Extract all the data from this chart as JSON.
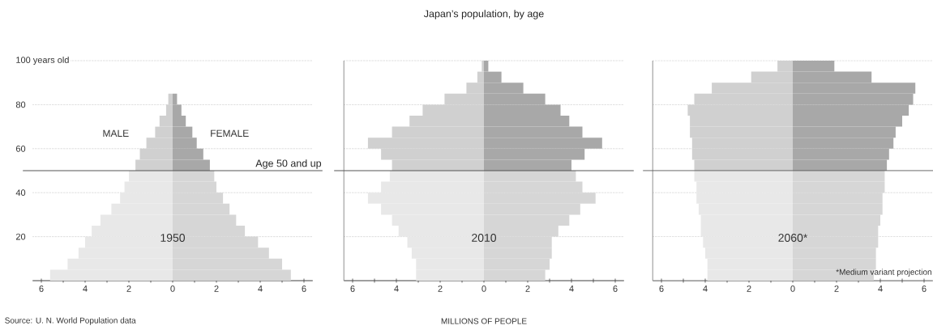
{
  "chart_data": [
    {
      "type": "bar",
      "orientation": "horizontal",
      "stacked": true,
      "subtitle": "1950",
      "annotations": [
        "Source: U. N. World Population data"
      ],
      "x": [
        2.5,
        7.5,
        12.5,
        17.5,
        22.5,
        27.5,
        32.5,
        37.5,
        42.5,
        47.5,
        52.5,
        57.5,
        62.5,
        67.5,
        72.5,
        77.5,
        82.5
      ],
      "series": [
        {
          "name": "MALE",
          "values": [
            -5.6,
            -4.8,
            -4.3,
            -4.0,
            -3.7,
            -3.3,
            -2.8,
            -2.4,
            -2.2,
            -2.0,
            -1.7,
            -1.5,
            -1.2,
            -0.8,
            -0.6,
            -0.3,
            -0.2
          ],
          "colors": [
            "#e8e8e8",
            "#e8e8e8",
            "#e8e8e8",
            "#e8e8e8",
            "#e8e8e8",
            "#e8e8e8",
            "#e8e8e8",
            "#e8e8e8",
            "#e8e8e8",
            "#e8e8e8",
            "#d0d0d0",
            "#d0d0d0",
            "#d0d0d0",
            "#d0d0d0",
            "#d0d0d0",
            "#d0d0d0",
            "#d0d0d0"
          ]
        },
        {
          "name": "FEMALE",
          "values": [
            5.4,
            5.0,
            4.4,
            3.9,
            3.3,
            2.9,
            2.6,
            2.3,
            2.0,
            1.9,
            1.7,
            1.4,
            1.1,
            0.9,
            0.6,
            0.4,
            0.2
          ],
          "colors": [
            "#d6d6d6",
            "#d6d6d6",
            "#d6d6d6",
            "#d6d6d6",
            "#d6d6d6",
            "#d6d6d6",
            "#d6d6d6",
            "#d6d6d6",
            "#d6d6d6",
            "#d6d6d6",
            "#a8a8a8",
            "#a8a8a8",
            "#a8a8a8",
            "#a8a8a8",
            "#a8a8a8",
            "#a8a8a8",
            "#a8a8a8"
          ]
        }
      ],
      "xlim": [
        -6.4,
        6.4
      ],
      "xticks": [
        {
          "value": -6,
          "label": "6"
        },
        {
          "value": -5,
          "label": null
        },
        {
          "value": -4,
          "label": "4"
        },
        {
          "value": -3,
          "label": null
        },
        {
          "value": -2,
          "label": "2"
        },
        {
          "value": -1,
          "label": null
        },
        0,
        {
          "value": 1,
          "label": null
        },
        2,
        {
          "value": 3,
          "label": null
        },
        4,
        {
          "value": 5,
          "label": null
        },
        6
      ],
      "ylim": [
        0,
        100
      ],
      "yticks": [
        20,
        40,
        60,
        80,
        {
          "value": 100,
          "label": "100 years old"
        }
      ],
      "grid": "y",
      "ref_lines": [
        {
          "axis": "y",
          "value": 50,
          "label": "Age 50 and up",
          "color": "#555555"
        }
      ]
    },
    {
      "type": "bar",
      "orientation": "horizontal",
      "stacked": true,
      "title": "Japan’s population, by age",
      "subtitle": "2010",
      "xlabel": "MILLIONS OF PEOPLE",
      "x": [
        2.5,
        7.5,
        12.5,
        17.5,
        22.5,
        27.5,
        32.5,
        37.5,
        42.5,
        47.5,
        52.5,
        57.5,
        62.5,
        67.5,
        72.5,
        77.5,
        82.5,
        87.5,
        92.5,
        97.5
      ],
      "series": [
        {
          "values": [
            -3.1,
            -3.1,
            -3.3,
            -3.5,
            -3.9,
            -4.2,
            -4.7,
            -5.3,
            -4.7,
            -4.3,
            -4.2,
            -4.7,
            -5.3,
            -4.2,
            -3.4,
            -2.8,
            -1.8,
            -0.8,
            -0.3,
            -0.1
          ],
          "colors": [
            "#e8e8e8",
            "#e8e8e8",
            "#e8e8e8",
            "#e8e8e8",
            "#e8e8e8",
            "#e8e8e8",
            "#e8e8e8",
            "#e8e8e8",
            "#e8e8e8",
            "#e8e8e8",
            "#d0d0d0",
            "#d0d0d0",
            "#d0d0d0",
            "#d0d0d0",
            "#d0d0d0",
            "#d0d0d0",
            "#d0d0d0",
            "#d0d0d0",
            "#d0d0d0",
            "#d0d0d0"
          ]
        },
        {
          "values": [
            2.8,
            3.0,
            3.1,
            3.1,
            3.4,
            3.9,
            4.4,
            5.1,
            4.5,
            4.2,
            4.0,
            4.6,
            5.4,
            4.5,
            3.9,
            3.5,
            2.8,
            1.8,
            0.8,
            0.2
          ],
          "colors": [
            "#d6d6d6",
            "#d6d6d6",
            "#d6d6d6",
            "#d6d6d6",
            "#d6d6d6",
            "#d6d6d6",
            "#d6d6d6",
            "#d6d6d6",
            "#d6d6d6",
            "#d6d6d6",
            "#a8a8a8",
            "#a8a8a8",
            "#a8a8a8",
            "#a8a8a8",
            "#a8a8a8",
            "#a8a8a8",
            "#a8a8a8",
            "#a8a8a8",
            "#a8a8a8",
            "#a8a8a8"
          ]
        }
      ],
      "xlim": [
        -6.4,
        6.4
      ],
      "xticks": [
        {
          "value": -6,
          "label": "6"
        },
        {
          "value": -5,
          "label": null
        },
        {
          "value": -4,
          "label": "4"
        },
        {
          "value": -3,
          "label": null
        },
        {
          "value": -2,
          "label": "2"
        },
        {
          "value": -1,
          "label": null
        },
        0,
        {
          "value": 1,
          "label": null
        },
        2,
        {
          "value": 3,
          "label": null
        },
        4,
        {
          "value": 5,
          "label": null
        },
        6
      ],
      "ylim": [
        0,
        100
      ],
      "yticks": [
        20,
        40,
        60,
        80,
        100
      ],
      "tick_labels": "x",
      "grid": "y",
      "ref_lines": [
        {
          "axis": "y",
          "value": 50,
          "color": "#555555"
        }
      ]
    },
    {
      "type": "bar",
      "orientation": "horizontal",
      "stacked": true,
      "subtitle": "2060*",
      "annotations": [
        "*Medium variant projection"
      ],
      "x": [
        2.5,
        7.5,
        12.5,
        17.5,
        22.5,
        27.5,
        32.5,
        37.5,
        42.5,
        47.5,
        52.5,
        57.5,
        62.5,
        67.5,
        72.5,
        77.5,
        82.5,
        87.5,
        92.5,
        97.5
      ],
      "series": [
        {
          "values": [
            -3.9,
            -3.9,
            -4.0,
            -4.1,
            -4.2,
            -4.2,
            -4.3,
            -4.4,
            -4.4,
            -4.5,
            -4.5,
            -4.6,
            -4.6,
            -4.7,
            -4.7,
            -4.8,
            -4.5,
            -3.7,
            -1.9,
            -0.7
          ],
          "colors": [
            "#e8e8e8",
            "#e8e8e8",
            "#e8e8e8",
            "#e8e8e8",
            "#e8e8e8",
            "#e8e8e8",
            "#e8e8e8",
            "#e8e8e8",
            "#e8e8e8",
            "#e8e8e8",
            "#d0d0d0",
            "#d0d0d0",
            "#d0d0d0",
            "#d0d0d0",
            "#d0d0d0",
            "#d0d0d0",
            "#d0d0d0",
            "#d0d0d0",
            "#d0d0d0",
            "#d0d0d0"
          ]
        },
        {
          "values": [
            3.7,
            3.8,
            3.8,
            3.9,
            3.9,
            4.0,
            4.1,
            4.1,
            4.2,
            4.2,
            4.3,
            4.4,
            4.6,
            4.7,
            5.0,
            5.3,
            5.5,
            5.6,
            3.6,
            1.9
          ],
          "colors": [
            "#d6d6d6",
            "#d6d6d6",
            "#d6d6d6",
            "#d6d6d6",
            "#d6d6d6",
            "#d6d6d6",
            "#d6d6d6",
            "#d6d6d6",
            "#d6d6d6",
            "#d6d6d6",
            "#a8a8a8",
            "#a8a8a8",
            "#a8a8a8",
            "#a8a8a8",
            "#a8a8a8",
            "#a8a8a8",
            "#a8a8a8",
            "#a8a8a8",
            "#a8a8a8",
            "#a8a8a8"
          ]
        }
      ],
      "xlim": [
        -6.4,
        6.4
      ],
      "xticks": [
        {
          "value": -6,
          "label": "6"
        },
        {
          "value": -5,
          "label": null
        },
        {
          "value": -4,
          "label": "4"
        },
        {
          "value": -3,
          "label": null
        },
        {
          "value": -2,
          "label": "2"
        },
        {
          "value": -1,
          "label": null
        },
        0,
        {
          "value": 1,
          "label": null
        },
        2,
        {
          "value": 3,
          "label": null
        },
        4,
        {
          "value": 5,
          "label": null
        },
        6
      ],
      "ylim": [
        0,
        100
      ],
      "yticks": [
        20,
        40,
        60,
        80,
        100
      ],
      "tick_labels": "x",
      "grid": "y",
      "ref_lines": [
        {
          "axis": "y",
          "value": 50,
          "color": "#555555"
        }
      ]
    }
  ]
}
